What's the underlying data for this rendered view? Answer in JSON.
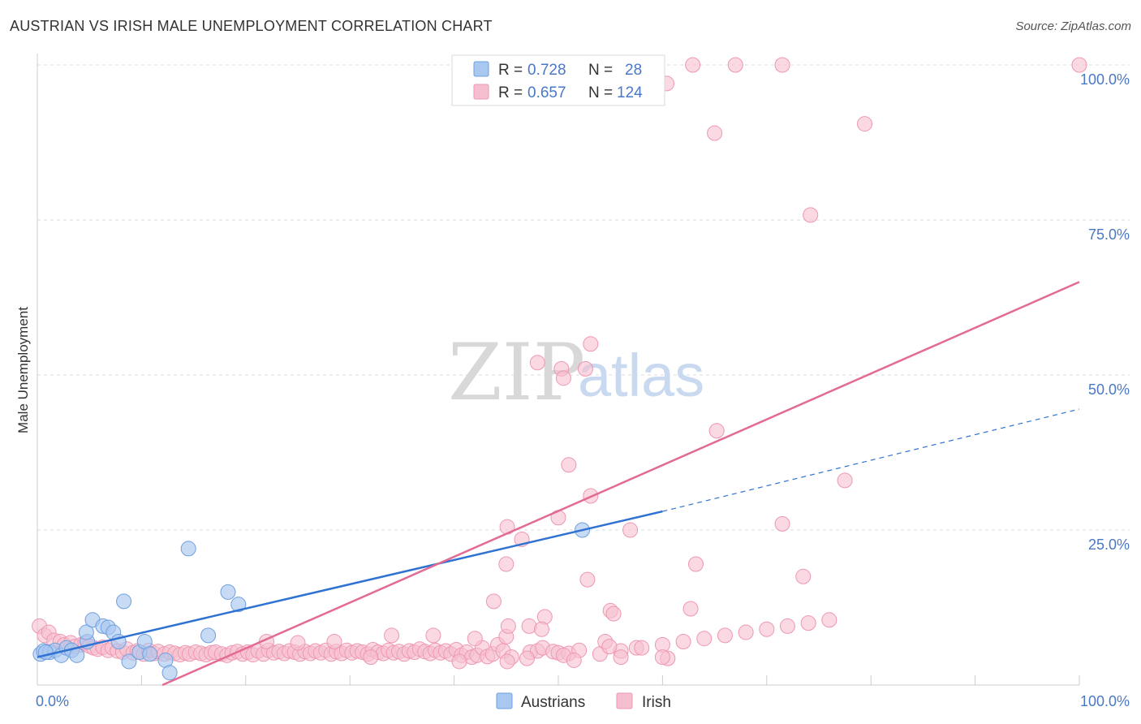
{
  "title": "AUSTRIAN VS IRISH MALE UNEMPLOYMENT CORRELATION CHART",
  "source": "Source: ZipAtlas.com",
  "watermark": {
    "zip": "ZIP",
    "atlas": "atlas"
  },
  "colors": {
    "austrians_fill": "#a9c8f0",
    "austrians_stroke": "#6f9fde",
    "austrians_line": "#2f72d2",
    "irish_fill": "#f6bfcf",
    "irish_stroke": "#ee97b2",
    "irish_line": "#e36b93",
    "grid": "#dddddd",
    "tick_text": "#4a78c4"
  },
  "legend": {
    "rows": [
      {
        "r_label": "R = ",
        "r_value": "0.728",
        "n_label": "N = ",
        "n_value": "28"
      },
      {
        "r_label": "R = ",
        "r_value": "0.657",
        "n_label": "N = ",
        "n_value": "124"
      }
    ]
  },
  "bottom_legend": [
    "Austrians",
    "Irish"
  ],
  "chart_data": {
    "type": "scatter",
    "title": "AUSTRIAN VS IRISH MALE UNEMPLOYMENT CORRELATION CHART",
    "xlabel": "",
    "ylabel": "Male Unemployment",
    "xlim": [
      0,
      100
    ],
    "ylim": [
      0,
      100
    ],
    "x_tick_labels": [
      "0.0%",
      "100.0%"
    ],
    "y_tick_labels": [
      "100.0%",
      "75.0%",
      "50.0%",
      "25.0%"
    ],
    "y_ticks": [
      100,
      75,
      50,
      25
    ],
    "grid": true,
    "legend_position": "top-center",
    "series": [
      {
        "name": "Austrians",
        "r": 0.728,
        "n": 28,
        "trend": {
          "x": [
            0,
            60
          ],
          "y": [
            4.5,
            28.0
          ],
          "dashed_to": [
            100,
            44.5
          ]
        },
        "points": [
          [
            0.3,
            5.0
          ],
          [
            0.6,
            5.5
          ],
          [
            1.2,
            5.3
          ],
          [
            1.7,
            5.6
          ],
          [
            2.3,
            4.8
          ],
          [
            2.8,
            6.0
          ],
          [
            3.3,
            5.6
          ],
          [
            3.8,
            4.8
          ],
          [
            4.8,
            7.0
          ],
          [
            4.7,
            8.5
          ],
          [
            5.3,
            10.5
          ],
          [
            6.3,
            9.5
          ],
          [
            6.8,
            9.3
          ],
          [
            7.3,
            8.5
          ],
          [
            7.8,
            7.0
          ],
          [
            8.3,
            13.5
          ],
          [
            8.8,
            3.8
          ],
          [
            9.8,
            5.3
          ],
          [
            10.3,
            7.0
          ],
          [
            10.8,
            5.0
          ],
          [
            12.3,
            4.0
          ],
          [
            12.7,
            2.0
          ],
          [
            14.5,
            22.0
          ],
          [
            16.4,
            8.0
          ],
          [
            18.3,
            15.0
          ],
          [
            19.3,
            13.0
          ],
          [
            52.3,
            25.0
          ],
          [
            0.8,
            5.3
          ]
        ]
      },
      {
        "name": "Irish",
        "r": 0.657,
        "n": 124,
        "trend": {
          "x": [
            12,
            100
          ],
          "y": [
            0,
            65.0
          ]
        },
        "points": [
          [
            0.2,
            9.5
          ],
          [
            0.7,
            8.0
          ],
          [
            1.1,
            8.5
          ],
          [
            1.6,
            7.2
          ],
          [
            2.2,
            7.0
          ],
          [
            2.6,
            6.5
          ],
          [
            3.2,
            6.8
          ],
          [
            3.6,
            6.2
          ],
          [
            4.2,
            6.5
          ],
          [
            4.6,
            6.8
          ],
          [
            5.0,
            6.3
          ],
          [
            5.4,
            6.0
          ],
          [
            5.8,
            5.8
          ],
          [
            6.3,
            6.1
          ],
          [
            6.8,
            5.6
          ],
          [
            7.2,
            6.0
          ],
          [
            7.7,
            5.5
          ],
          [
            8.2,
            5.3
          ],
          [
            8.6,
            5.8
          ],
          [
            9.2,
            5.2
          ],
          [
            9.6,
            5.5
          ],
          [
            10.2,
            5.0
          ],
          [
            10.7,
            5.6
          ],
          [
            11.2,
            5.1
          ],
          [
            11.6,
            5.4
          ],
          [
            12.2,
            5.0
          ],
          [
            12.7,
            5.3
          ],
          [
            13.2,
            5.1
          ],
          [
            13.7,
            4.9
          ],
          [
            14.2,
            5.2
          ],
          [
            14.6,
            5.0
          ],
          [
            15.2,
            5.3
          ],
          [
            15.7,
            5.1
          ],
          [
            16.2,
            4.9
          ],
          [
            16.7,
            5.2
          ],
          [
            17.1,
            5.3
          ],
          [
            17.7,
            5.0
          ],
          [
            18.2,
            4.8
          ],
          [
            18.7,
            5.2
          ],
          [
            19.2,
            5.4
          ],
          [
            19.7,
            5.0
          ],
          [
            20.2,
            5.3
          ],
          [
            20.7,
            4.9
          ],
          [
            21.2,
            5.5
          ],
          [
            21.7,
            5.0
          ],
          [
            22.2,
            5.6
          ],
          [
            22.7,
            5.2
          ],
          [
            23.2,
            5.4
          ],
          [
            23.7,
            5.1
          ],
          [
            24.2,
            5.5
          ],
          [
            24.7,
            5.3
          ],
          [
            25.2,
            5.0
          ],
          [
            25.7,
            5.4
          ],
          [
            26.2,
            5.1
          ],
          [
            26.7,
            5.5
          ],
          [
            27.2,
            5.2
          ],
          [
            27.7,
            5.6
          ],
          [
            28.2,
            5.0
          ],
          [
            28.7,
            5.4
          ],
          [
            29.2,
            5.1
          ],
          [
            29.7,
            5.6
          ],
          [
            30.2,
            5.2
          ],
          [
            30.7,
            5.5
          ],
          [
            31.2,
            5.3
          ],
          [
            31.7,
            5.0
          ],
          [
            32.2,
            5.7
          ],
          [
            32.7,
            5.3
          ],
          [
            33.2,
            5.1
          ],
          [
            33.7,
            5.6
          ],
          [
            34.2,
            5.2
          ],
          [
            34.7,
            5.4
          ],
          [
            35.2,
            5.0
          ],
          [
            35.7,
            5.5
          ],
          [
            36.2,
            5.3
          ],
          [
            36.7,
            5.8
          ],
          [
            37.2,
            5.4
          ],
          [
            37.7,
            5.1
          ],
          [
            38.2,
            5.6
          ],
          [
            38.7,
            5.2
          ],
          [
            39.2,
            5.5
          ],
          [
            39.7,
            5.0
          ],
          [
            40.2,
            5.7
          ],
          [
            40.7,
            4.8
          ],
          [
            41.2,
            5.3
          ],
          [
            41.7,
            4.5
          ],
          [
            42.2,
            4.8
          ],
          [
            42.7,
            6.0
          ],
          [
            43.2,
            4.6
          ],
          [
            43.7,
            5.0
          ],
          [
            44.2,
            6.5
          ],
          [
            44.7,
            5.5
          ],
          [
            22.0,
            7.0
          ],
          [
            25.0,
            6.8
          ],
          [
            28.5,
            7.0
          ],
          [
            34.0,
            8.0
          ],
          [
            38.0,
            8.0
          ],
          [
            42.0,
            7.5
          ],
          [
            45.0,
            7.8
          ],
          [
            47.3,
            5.3
          ],
          [
            48.0,
            5.5
          ],
          [
            48.5,
            6.0
          ],
          [
            49.5,
            5.4
          ],
          [
            50.0,
            5.2
          ],
          [
            51.0,
            5.1
          ],
          [
            52.0,
            5.6
          ],
          [
            32.0,
            4.5
          ],
          [
            40.5,
            3.8
          ],
          [
            45.5,
            4.5
          ],
          [
            47.0,
            4.3
          ],
          [
            50.5,
            4.8
          ],
          [
            51.5,
            4.0
          ],
          [
            54.0,
            5.0
          ],
          [
            56.0,
            5.5
          ],
          [
            57.5,
            6.0
          ],
          [
            58.0,
            6.0
          ],
          [
            60.0,
            6.5
          ],
          [
            62.0,
            7.0
          ],
          [
            64.0,
            7.5
          ],
          [
            66.0,
            8.0
          ],
          [
            68.0,
            8.5
          ],
          [
            70.0,
            9.0
          ],
          [
            72.0,
            9.5
          ],
          [
            74.0,
            10.0
          ],
          [
            76.0,
            10.5
          ]
        ]
      }
    ],
    "irish_highlights": [
      [
        62.9,
        100
      ],
      [
        67.0,
        100
      ],
      [
        71.5,
        100
      ],
      [
        100.0,
        100
      ],
      [
        60.4,
        97.0
      ],
      [
        65.0,
        89.0
      ],
      [
        79.4,
        90.5
      ],
      [
        74.2,
        75.8
      ],
      [
        53.1,
        55.0
      ],
      [
        48.0,
        52.0
      ],
      [
        50.3,
        51.0
      ],
      [
        50.5,
        49.5
      ],
      [
        52.6,
        51.0
      ],
      [
        65.2,
        41.0
      ],
      [
        51.0,
        35.5
      ],
      [
        53.1,
        30.5
      ],
      [
        77.5,
        33.0
      ],
      [
        50.0,
        27.0
      ],
      [
        45.1,
        25.5
      ],
      [
        46.5,
        23.5
      ],
      [
        56.9,
        25.0
      ],
      [
        71.5,
        26.0
      ],
      [
        45.0,
        19.5
      ],
      [
        63.2,
        19.5
      ],
      [
        73.5,
        17.5
      ],
      [
        52.8,
        17.0
      ],
      [
        43.8,
        13.5
      ],
      [
        55.0,
        12.0
      ],
      [
        62.7,
        12.3
      ],
      [
        55.3,
        11.5
      ],
      [
        48.7,
        11.0
      ],
      [
        45.2,
        9.5
      ],
      [
        47.2,
        9.5
      ],
      [
        48.4,
        9.0
      ],
      [
        54.5,
        7.0
      ],
      [
        54.9,
        6.2
      ],
      [
        45.1,
        3.8
      ],
      [
        60.5,
        4.3
      ],
      [
        56.0,
        4.5
      ],
      [
        60.0,
        4.5
      ]
    ]
  }
}
